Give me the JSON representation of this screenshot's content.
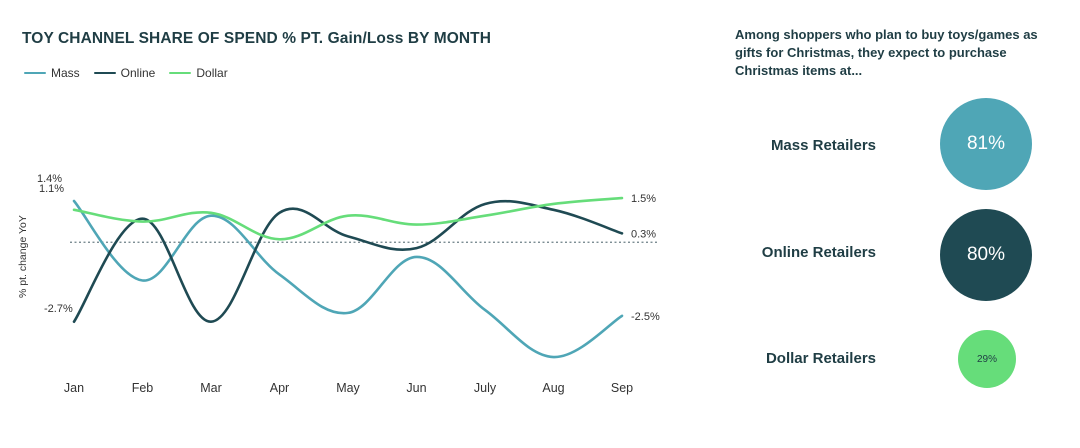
{
  "chart_data": {
    "type": "line",
    "title": "TOY CHANNEL SHARE OF SPEND % PT. Gain/Loss BY MONTH",
    "ylabel": "% pt. change YoY",
    "xlabel": "",
    "categories": [
      "Jan",
      "Feb",
      "Mar",
      "Apr",
      "May",
      "Jun",
      "July",
      "Aug",
      "Sep"
    ],
    "ylim": [
      -4.0,
      3.2
    ],
    "series": [
      {
        "name": "Mass",
        "color": "#4fa6b6",
        "values": [
          1.4,
          -1.3,
          0.9,
          -1.1,
          -2.4,
          -0.5,
          -2.3,
          -3.9,
          -2.5
        ],
        "start_label": "1.4%",
        "end_label": "-2.5%"
      },
      {
        "name": "Online",
        "color": "#1f4a53",
        "values": [
          -2.7,
          0.8,
          -2.7,
          1.0,
          0.2,
          -0.2,
          1.3,
          1.1,
          0.3
        ],
        "start_label": "-2.7%",
        "end_label": "0.3%"
      },
      {
        "name": "Dollar",
        "color": "#66dd7a",
        "values": [
          1.1,
          0.7,
          1.0,
          0.1,
          0.9,
          0.6,
          0.9,
          1.3,
          1.5
        ],
        "start_label": "1.1%",
        "end_label": "1.5%"
      }
    ],
    "reference_line": 0
  },
  "panel": {
    "heading": "Among shoppers who plan to buy toys/games as gifts for Christmas, they expect to purchase Christmas items at...",
    "retailers": [
      {
        "label": "Mass Retailers",
        "value_label": "81%",
        "value": 81,
        "color": "#4fa6b6"
      },
      {
        "label": "Online Retailers",
        "value_label": "80%",
        "value": 80,
        "color": "#1f4a53"
      },
      {
        "label": "Dollar Retailers",
        "value_label": "29%",
        "value": 29,
        "color": "#66dd7a"
      }
    ]
  }
}
